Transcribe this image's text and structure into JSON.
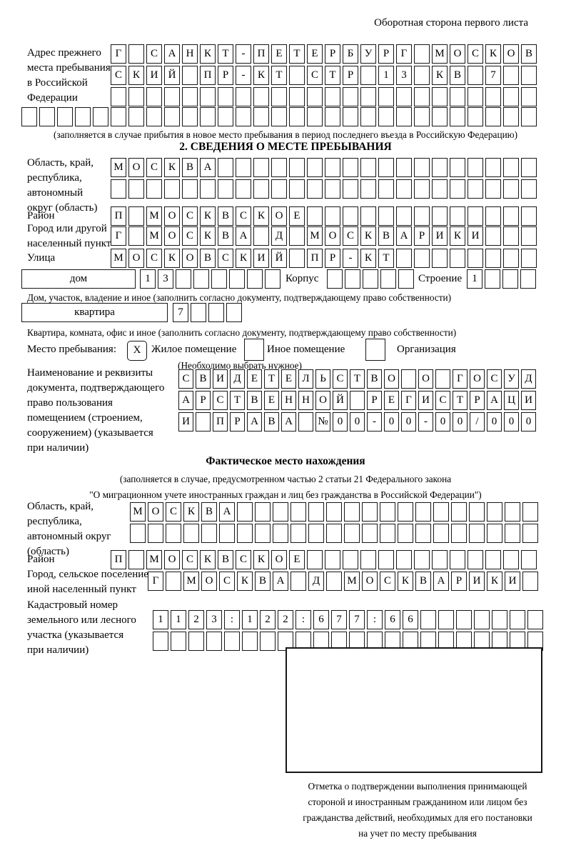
{
  "page": {
    "header_note": "Оборотная сторона первого листа",
    "section2_title": "2. СВЕДЕНИЯ О МЕСТЕ ПРЕБЫВАНИЯ",
    "actual_location_title": "Фактическое место нахождения"
  },
  "prev_address": {
    "label_lines": [
      "Адрес прежнего",
      "места пребывания",
      "в Российской",
      "Федерации"
    ],
    "rows": [
      {
        "cells": 24,
        "value": "Г САНКТ-ПЕТЕРБУРГ МОСКОВ"
      },
      {
        "cells": 24,
        "value": "СКИЙ ПР-КТ СТР 13 КВ 7"
      },
      {
        "cells": 24,
        "value": ""
      },
      {
        "cells": 29,
        "value": ""
      }
    ],
    "note": "(заполняется в случае прибытия в новое место пребывания в период последнего въезда в Российскую Федерацию)"
  },
  "stay_place": {
    "region": {
      "label_lines": [
        "Область, край,",
        "республика,",
        "автономный",
        "округ (область)"
      ],
      "rows": [
        {
          "cells": 24,
          "value": "МОСКВА"
        },
        {
          "cells": 24,
          "value": ""
        }
      ]
    },
    "district": {
      "label": "Район",
      "row": {
        "cells": 24,
        "value": "П МОСКВСКОЕ"
      }
    },
    "city": {
      "label_lines": [
        "Город или другой",
        "населенный пункт"
      ],
      "row": {
        "cells": 24,
        "value": "Г МОСКВА Д МОСКВАРИКИ"
      }
    },
    "street": {
      "label": "Улица",
      "row": {
        "cells": 24,
        "value": "МОСКОВСКИЙ ПР-КТ"
      }
    },
    "house": {
      "box_label": "дом",
      "row": {
        "cells": 8,
        "value": "13"
      },
      "korpus_label": "Корпус",
      "korpus_row": {
        "cells": 5,
        "value": ""
      },
      "stroenie_label": "Строение",
      "stroenie_row": {
        "cells": 4,
        "value": "1"
      }
    },
    "house_note": "Дом, участок, владение и иное (заполнить согласно документу, подтверждающему право собственности)",
    "apartment": {
      "box_label": "квартира",
      "row": {
        "cells": 4,
        "value": "7"
      }
    },
    "apartment_note": "Квартира, комната, офис и иное (заполнить согласно документу, подтверждающему право собственности)",
    "stay_type": {
      "label": "Место пребывания:",
      "mark": "X",
      "options": [
        {
          "label": "Жилое помещение",
          "checked": true
        },
        {
          "label": "Иное помещение",
          "checked": false
        },
        {
          "label": "Организация",
          "checked": false
        }
      ],
      "note": "(Необходимо выбрать нужное)"
    },
    "document": {
      "label_lines": [
        "Наименование и реквизиты",
        "документа, подтверждающего",
        "право пользования",
        "помещением (строением,",
        "сооружением) (указывается",
        "при наличии)"
      ],
      "rows": [
        {
          "cells": 21,
          "value": "СВИДЕТЕЛЬСТВО О ГОСУД"
        },
        {
          "cells": 21,
          "value": "АРСТВЕННОЙ РЕГИСТРАЦИ"
        },
        {
          "cells": 21,
          "value": "И ПРАВА №00-00-00/000"
        }
      ]
    }
  },
  "actual_location": {
    "note_lines": [
      "(заполняется в случае, предусмотренном частью 2 статьи 21 Федерального закона",
      "\"О миграционном учете иностранных граждан и лиц без гражданства в Российской Федерации\")"
    ],
    "region": {
      "label_lines": [
        "Область, край,",
        "республика,",
        "автономный округ",
        "(область)"
      ],
      "rows": [
        {
          "cells": 23,
          "value": "МОСКВА"
        },
        {
          "cells": 23,
          "value": ""
        }
      ]
    },
    "district": {
      "label": "Район",
      "row": {
        "cells": 24,
        "value": "П МОСКВСКОЕ"
      }
    },
    "city": {
      "label_lines": [
        "Город, сельское поселение,",
        "иной населенный пункт"
      ],
      "row": {
        "cells": 22,
        "value": "Г МОСКВА Д МОСКВАРИКИ"
      }
    },
    "cadastral": {
      "label_lines": [
        "Кадастровый номер",
        "земельного или лесного",
        "участка (указывается",
        "при наличии)"
      ],
      "rows": [
        {
          "cells": 22,
          "value": "1123:122:677:66"
        },
        {
          "cells": 22,
          "value": ""
        }
      ]
    }
  },
  "stamp": {
    "caption_lines": [
      "Отметка о подтверждении выполнения принимающей",
      "стороной и иностранным гражданином или лицом без",
      "гражданства действий, необходимых для его постановки",
      "на учет по месту пребывания"
    ]
  }
}
